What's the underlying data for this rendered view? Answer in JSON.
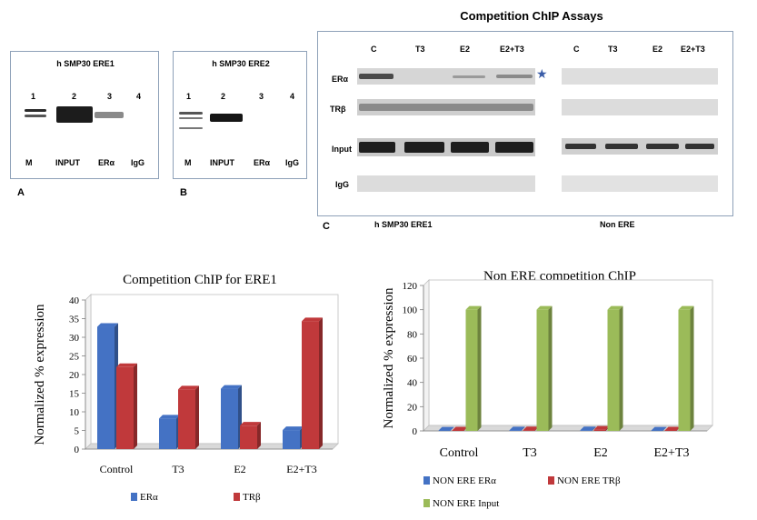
{
  "top_title": "Competition ChIP Assays",
  "panel_a": {
    "title": "h SMP30 ERE1",
    "lane_numbers": [
      "1",
      "2",
      "3",
      "4"
    ],
    "lane_labels": [
      "M",
      "INPUT",
      "ERα",
      "IgG"
    ],
    "letter": "A"
  },
  "panel_b": {
    "title": "h SMP30 ERE2",
    "lane_numbers": [
      "1",
      "2",
      "3",
      "4"
    ],
    "lane_labels": [
      "M",
      "INPUT",
      "ERα",
      "IgG"
    ],
    "letter": "B"
  },
  "panel_c": {
    "letter": "C",
    "columns_left": [
      "C",
      "T3",
      "E2",
      "E2+T3"
    ],
    "columns_right": [
      "C",
      "T3",
      "E2",
      "E2+T3"
    ],
    "rows": [
      "ERα",
      "TRβ",
      "Input",
      "IgG"
    ],
    "star": "★",
    "bottom_left": "h SMP30 ERE1",
    "bottom_right": "Non ERE"
  },
  "chart_data": [
    {
      "type": "bar",
      "title": "Competition ChIP for ERE1",
      "ylabel": "Normalized % expression",
      "xlabel": "",
      "categories": [
        "Control",
        "T3",
        "E2",
        "E2+T3"
      ],
      "ylim": [
        0,
        40
      ],
      "yticks": [
        "0",
        "5",
        "10",
        "15",
        "20",
        "25",
        "30",
        "35",
        "40"
      ],
      "series": [
        {
          "name": "ERα",
          "color": "#4472c4",
          "values": [
            32.8,
            8.2,
            16.2,
            5.1
          ]
        },
        {
          "name": "TRβ",
          "color": "#c0393b",
          "values": [
            22.0,
            16.0,
            6.3,
            34.3
          ]
        }
      ],
      "legend": "bottom"
    },
    {
      "type": "bar",
      "title": "Non ERE competition ChIP",
      "ylabel": "Normalized % expression",
      "xlabel": "",
      "categories": [
        "Control",
        "T3",
        "E2",
        "E2+T3"
      ],
      "ylim": [
        0,
        120
      ],
      "yticks": [
        "0",
        "20",
        "40",
        "60",
        "80",
        "100",
        "120"
      ],
      "series": [
        {
          "name": "NON ERE ERα",
          "color": "#4472c4",
          "values": [
            0.3,
            0.5,
            0.6,
            0.3
          ]
        },
        {
          "name": "NON ERE TRβ",
          "color": "#c0393b",
          "values": [
            0.4,
            0.6,
            1.0,
            0.4
          ]
        },
        {
          "name": "NON ERE Input",
          "color": "#9bbb59",
          "values": [
            100,
            100,
            100,
            100
          ]
        }
      ],
      "legend": "bottom"
    }
  ]
}
